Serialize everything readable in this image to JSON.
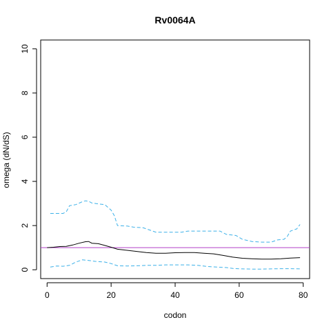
{
  "chart_data": {
    "type": "line",
    "title": "Rv0064A",
    "xlabel": "codon",
    "ylabel": "omega (dN/dS)",
    "xlim": [
      -2,
      82
    ],
    "ylim": [
      -0.4,
      10.4
    ],
    "x_ticks": [
      0,
      20,
      40,
      60,
      80
    ],
    "y_ticks": [
      0,
      2,
      4,
      6,
      8,
      10
    ],
    "grid": false,
    "reference_line": {
      "y": 1,
      "color": "#b03dc8"
    },
    "series": [
      {
        "role": "omega",
        "color": "#000000",
        "dash": "solid",
        "points": [
          [
            0,
            1.0
          ],
          [
            2,
            1.02
          ],
          [
            4,
            1.05
          ],
          [
            6,
            1.06
          ],
          [
            8,
            1.12
          ],
          [
            10,
            1.2
          ],
          [
            12,
            1.27
          ],
          [
            13,
            1.28
          ],
          [
            14,
            1.2
          ],
          [
            16,
            1.18
          ],
          [
            18,
            1.1
          ],
          [
            20,
            1.02
          ],
          [
            22,
            0.93
          ],
          [
            25,
            0.88
          ],
          [
            28,
            0.83
          ],
          [
            31,
            0.78
          ],
          [
            34,
            0.75
          ],
          [
            37,
            0.75
          ],
          [
            40,
            0.77
          ],
          [
            43,
            0.78
          ],
          [
            46,
            0.78
          ],
          [
            49,
            0.75
          ],
          [
            52,
            0.72
          ],
          [
            55,
            0.65
          ],
          [
            58,
            0.57
          ],
          [
            61,
            0.52
          ],
          [
            64,
            0.5
          ],
          [
            67,
            0.48
          ],
          [
            70,
            0.48
          ],
          [
            73,
            0.5
          ],
          [
            76,
            0.53
          ],
          [
            79,
            0.55
          ]
        ]
      },
      {
        "role": "upper",
        "color": "#3bb0e8",
        "dash": "dashed",
        "points": [
          [
            1,
            2.55
          ],
          [
            5,
            2.55
          ],
          [
            6,
            2.62
          ],
          [
            7,
            2.9
          ],
          [
            9,
            2.95
          ],
          [
            11,
            3.08
          ],
          [
            12,
            3.12
          ],
          [
            13,
            3.1
          ],
          [
            14,
            3.02
          ],
          [
            16,
            2.98
          ],
          [
            18,
            2.95
          ],
          [
            20,
            2.7
          ],
          [
            21,
            2.45
          ],
          [
            22,
            2.0
          ],
          [
            25,
            1.98
          ],
          [
            27,
            1.93
          ],
          [
            30,
            1.9
          ],
          [
            32,
            1.8
          ],
          [
            34,
            1.7
          ],
          [
            38,
            1.7
          ],
          [
            42,
            1.7
          ],
          [
            44,
            1.75
          ],
          [
            47,
            1.75
          ],
          [
            50,
            1.75
          ],
          [
            54,
            1.75
          ],
          [
            56,
            1.6
          ],
          [
            59,
            1.55
          ],
          [
            61,
            1.38
          ],
          [
            64,
            1.28
          ],
          [
            67,
            1.25
          ],
          [
            70,
            1.25
          ],
          [
            72,
            1.35
          ],
          [
            74,
            1.38
          ],
          [
            75,
            1.5
          ],
          [
            76,
            1.75
          ],
          [
            78,
            1.85
          ],
          [
            79,
            2.05
          ]
        ]
      },
      {
        "role": "lower",
        "color": "#3bb0e8",
        "dash": "dashed",
        "points": [
          [
            1,
            0.12
          ],
          [
            3,
            0.17
          ],
          [
            5,
            0.16
          ],
          [
            7,
            0.2
          ],
          [
            9,
            0.35
          ],
          [
            11,
            0.45
          ],
          [
            13,
            0.42
          ],
          [
            15,
            0.38
          ],
          [
            18,
            0.35
          ],
          [
            20,
            0.28
          ],
          [
            22,
            0.18
          ],
          [
            25,
            0.17
          ],
          [
            28,
            0.18
          ],
          [
            31,
            0.2
          ],
          [
            34,
            0.2
          ],
          [
            37,
            0.22
          ],
          [
            41,
            0.22
          ],
          [
            44,
            0.22
          ],
          [
            47,
            0.2
          ],
          [
            50,
            0.15
          ],
          [
            53,
            0.12
          ],
          [
            56,
            0.1
          ],
          [
            58,
            0.06
          ],
          [
            61,
            0.04
          ],
          [
            64,
            0.03
          ],
          [
            67,
            0.03
          ],
          [
            70,
            0.04
          ],
          [
            73,
            0.05
          ],
          [
            76,
            0.05
          ],
          [
            79,
            0.04
          ]
        ]
      }
    ]
  }
}
